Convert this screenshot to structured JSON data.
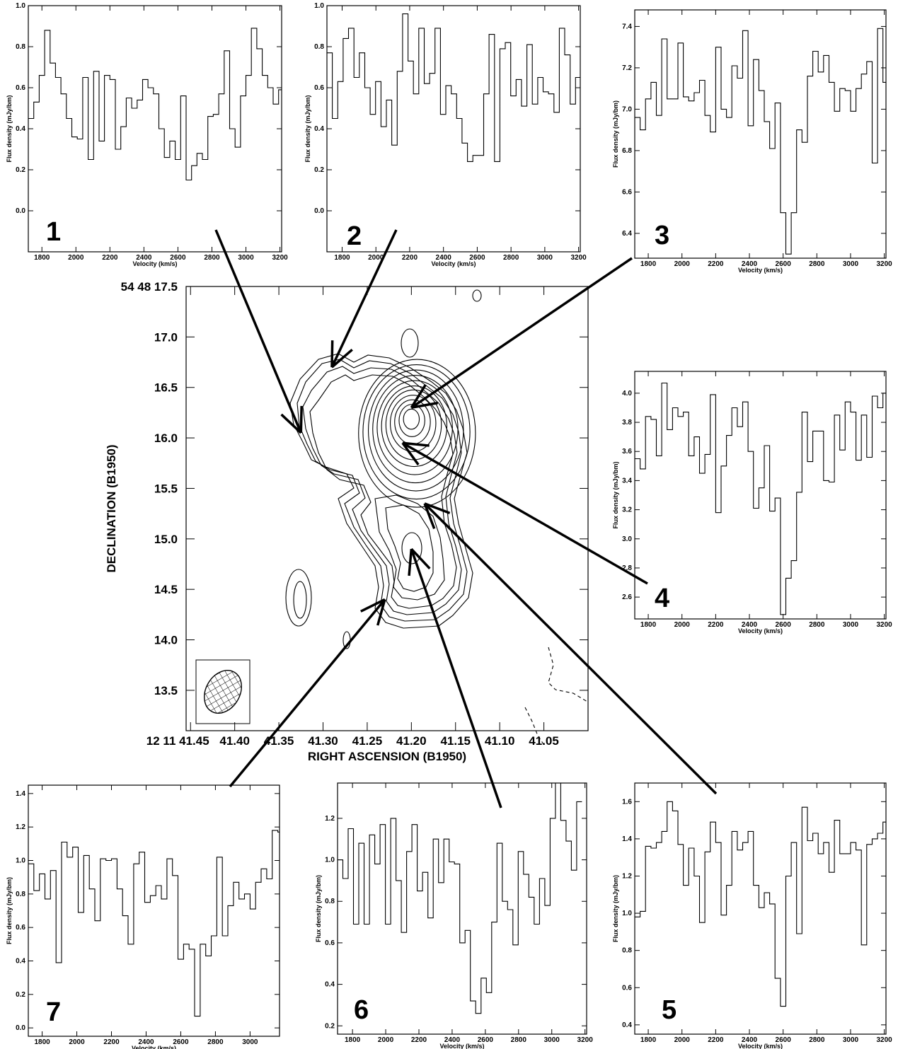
{
  "chart_data": [
    {
      "type": "contour",
      "panel": "map",
      "xlabel": "RIGHT ASCENSION (B1950)",
      "ylabel": "DECLINATION (B1950)",
      "x_tick_labels": [
        "12 11 41.45",
        "41.40",
        "41.35",
        "41.30",
        "41.25",
        "41.20",
        "41.15",
        "41.10",
        "41.05"
      ],
      "y_tick_labels": [
        "54 48 17.5",
        "17.0",
        "16.5",
        "16.0",
        "15.5",
        "15.0",
        "14.5",
        "14.0",
        "13.5"
      ],
      "xlim_seconds": [
        41.455,
        41.0
      ],
      "ylim_arcsec": [
        13.1,
        17.5
      ],
      "peak": {
        "ra_s": 41.2,
        "dec_arcsec": 16.2
      },
      "beam": {
        "ra_s": 41.43,
        "dec_arcsec": 13.6,
        "major_arcsec": 0.5,
        "minor_arcsec": 0.38,
        "hatched": true
      },
      "arrows": [
        {
          "panel": "1",
          "ra_s": 41.325,
          "dec_arcsec": 16.05
        },
        {
          "panel": "2",
          "ra_s": 41.29,
          "dec_arcsec": 16.7
        },
        {
          "panel": "3",
          "ra_s": 41.2,
          "dec_arcsec": 16.3
        },
        {
          "panel": "4",
          "ra_s": 41.21,
          "dec_arcsec": 15.95
        },
        {
          "panel": "5",
          "ra_s": 41.185,
          "dec_arcsec": 15.35
        },
        {
          "panel": "6",
          "ra_s": 41.2,
          "dec_arcsec": 14.9
        },
        {
          "panel": "7",
          "ra_s": 41.23,
          "dec_arcsec": 14.4
        }
      ]
    },
    {
      "type": "line",
      "step": true,
      "panel": "1",
      "xlabel": "Velocity (km/s)",
      "ylabel": "Flux density (mJy/bm)",
      "xlim": [
        1720,
        3210
      ],
      "ylim": [
        -0.2,
        1.0
      ],
      "xticks": [
        1800,
        2000,
        2200,
        2400,
        2600,
        2800,
        3000,
        3200
      ],
      "yticks": [
        0.0,
        0.2,
        0.4,
        0.6,
        0.8,
        1.0
      ],
      "x_start": 1720,
      "x_step": 32,
      "values": [
        0.45,
        0.53,
        0.66,
        0.88,
        0.72,
        0.65,
        0.57,
        0.45,
        0.36,
        0.35,
        0.65,
        0.25,
        0.68,
        0.34,
        0.66,
        0.64,
        0.3,
        0.41,
        0.55,
        0.5,
        0.54,
        0.64,
        0.6,
        0.57,
        0.4,
        0.26,
        0.34,
        0.25,
        0.56,
        0.15,
        0.22,
        0.28,
        0.25,
        0.46,
        0.47,
        0.57,
        0.78,
        0.4,
        0.31,
        0.56,
        0.66,
        0.89,
        0.79,
        0.66,
        0.6,
        0.52,
        0.59,
        0.77,
        0.94,
        0.38,
        0.34,
        0.62
      ]
    },
    {
      "type": "line",
      "step": true,
      "panel": "2",
      "xlabel": "Velocity (km/s)",
      "ylabel": "Flux density (mJy/bm)",
      "xlim": [
        1710,
        3210
      ],
      "ylim": [
        -0.2,
        1.0
      ],
      "xticks": [
        1800,
        2000,
        2200,
        2400,
        2600,
        2800,
        3000,
        3200
      ],
      "yticks": [
        0.0,
        0.2,
        0.4,
        0.6,
        0.8,
        1.0
      ],
      "x_start": 1710,
      "x_step": 32,
      "values": [
        0.77,
        0.45,
        0.63,
        0.84,
        0.89,
        0.65,
        0.77,
        0.6,
        0.47,
        0.63,
        0.41,
        0.54,
        0.32,
        0.68,
        0.96,
        0.73,
        0.57,
        0.89,
        0.62,
        0.67,
        0.89,
        0.47,
        0.61,
        0.57,
        0.45,
        0.33,
        0.24,
        0.27,
        0.27,
        0.57,
        0.86,
        0.24,
        0.79,
        0.82,
        0.56,
        0.64,
        0.51,
        0.81,
        0.52,
        0.65,
        0.58,
        0.57,
        0.48,
        0.89,
        0.76,
        0.52,
        0.65,
        0.59,
        0.69,
        0.6,
        0.58,
        0.74,
        0.54,
        0.41,
        0.44,
        0.58
      ]
    },
    {
      "type": "line",
      "step": true,
      "panel": "3",
      "xlabel": "Velocity (km/s)",
      "ylabel": "Flux density (mJy/bm)",
      "xlim": [
        1720,
        3210
      ],
      "ylim": [
        6.28,
        7.48
      ],
      "xticks": [
        1800,
        2000,
        2200,
        2400,
        2600,
        2800,
        3000,
        3200
      ],
      "yticks": [
        6.4,
        6.6,
        6.8,
        7.0,
        7.2,
        7.4
      ],
      "x_start": 1720,
      "x_step": 32,
      "values": [
        6.96,
        6.9,
        7.05,
        7.13,
        6.97,
        7.34,
        7.05,
        7.05,
        7.32,
        7.06,
        7.04,
        7.08,
        7.14,
        6.97,
        6.89,
        7.3,
        7.0,
        6.96,
        7.21,
        7.15,
        7.38,
        6.92,
        7.24,
        7.09,
        6.94,
        6.81,
        7.03,
        6.5,
        6.3,
        6.5,
        6.9,
        6.84,
        7.16,
        7.28,
        7.18,
        7.26,
        7.13,
        6.99,
        7.1,
        7.09,
        6.99,
        7.1,
        7.17,
        7.23,
        6.74,
        7.39,
        7.13,
        7.33,
        7.0,
        6.97,
        7.41,
        7.2,
        7.46,
        7.13
      ]
    },
    {
      "type": "line",
      "step": true,
      "panel": "4",
      "xlabel": "Velocity (km/s)",
      "ylabel": "Flux density (mJy/bm)",
      "xlim": [
        1720,
        3210
      ],
      "ylim": [
        2.45,
        4.15
      ],
      "xticks": [
        1800,
        2000,
        2200,
        2400,
        2600,
        2800,
        3000,
        3200
      ],
      "yticks": [
        2.6,
        2.8,
        3.0,
        3.2,
        3.4,
        3.6,
        3.8,
        4.0
      ],
      "x_start": 1720,
      "x_step": 32,
      "values": [
        3.55,
        3.48,
        3.84,
        3.82,
        3.57,
        4.07,
        3.75,
        3.9,
        3.84,
        3.87,
        3.57,
        3.7,
        3.45,
        3.58,
        3.99,
        3.18,
        3.5,
        3.71,
        3.9,
        3.77,
        3.94,
        3.6,
        3.21,
        3.35,
        3.64,
        3.19,
        3.28,
        2.48,
        2.73,
        2.85,
        3.32,
        3.87,
        3.53,
        3.74,
        3.74,
        3.4,
        3.39,
        3.85,
        3.61,
        3.94,
        3.87,
        3.54,
        3.85,
        3.56,
        3.98,
        3.9,
        4.0,
        3.71,
        3.75,
        3.74,
        4.15,
        3.65,
        3.9
      ]
    },
    {
      "type": "line",
      "step": true,
      "panel": "5",
      "xlabel": "Velocity (km/s)",
      "ylabel": "Flux density (mJy/bm)",
      "xlim": [
        1720,
        3210
      ],
      "ylim": [
        0.35,
        1.7
      ],
      "xticks": [
        1800,
        2000,
        2200,
        2400,
        2600,
        2800,
        3000,
        3200
      ],
      "yticks": [
        0.4,
        0.6,
        0.8,
        1.0,
        1.2,
        1.4,
        1.6
      ],
      "x_start": 1720,
      "x_step": 32,
      "values": [
        0.98,
        1.01,
        1.36,
        1.35,
        1.38,
        1.44,
        1.6,
        1.55,
        1.37,
        1.15,
        1.35,
        1.2,
        0.95,
        1.33,
        1.49,
        1.38,
        0.99,
        1.15,
        1.44,
        1.34,
        1.38,
        1.44,
        1.15,
        1.03,
        1.11,
        1.05,
        0.65,
        0.5,
        1.2,
        1.38,
        0.89,
        1.57,
        1.39,
        1.43,
        1.32,
        1.38,
        1.22,
        1.5,
        1.32,
        1.32,
        1.38,
        1.34,
        0.83,
        1.37,
        1.4,
        1.43,
        1.49,
        1.34,
        1.53,
        1.42,
        1.47,
        1.15
      ]
    },
    {
      "type": "line",
      "step": true,
      "panel": "6",
      "xlabel": "Velocity (km/s)",
      "ylabel": "Flux density (mJy/bm)",
      "xlim": [
        1710,
        3210
      ],
      "ylim": [
        0.16,
        1.37
      ],
      "xticks": [
        1800,
        2000,
        2200,
        2400,
        2600,
        2800,
        3000,
        3200
      ],
      "yticks": [
        0.2,
        0.4,
        0.6,
        0.8,
        1.0,
        1.2
      ],
      "x_start": 1710,
      "x_step": 32,
      "values": [
        1.0,
        0.91,
        1.15,
        0.69,
        1.08,
        0.69,
        1.12,
        0.98,
        1.17,
        0.69,
        1.2,
        0.9,
        0.65,
        1.04,
        1.17,
        0.85,
        0.94,
        0.72,
        1.1,
        0.89,
        1.1,
        0.99,
        0.98,
        0.6,
        0.66,
        0.32,
        0.26,
        0.43,
        0.36,
        0.7,
        1.08,
        0.8,
        0.76,
        0.59,
        1.04,
        0.93,
        0.82,
        0.69,
        0.91,
        0.78,
        1.2,
        1.37,
        1.19,
        1.09,
        0.95,
        1.28
      ]
    },
    {
      "type": "line",
      "step": true,
      "panel": "7",
      "xlabel": "Velocity (km/s)",
      "ylabel": "Flux density (mJy/bm)",
      "xlim": [
        1720,
        3170
      ],
      "ylim": [
        -0.05,
        1.45
      ],
      "xticks": [
        1800,
        2000,
        2200,
        2400,
        2600,
        2800,
        3000
      ],
      "yticks": [
        0.0,
        0.2,
        0.4,
        0.6,
        0.8,
        1.0,
        1.2,
        1.4
      ],
      "x_start": 1720,
      "x_step": 32,
      "values": [
        0.98,
        0.82,
        0.92,
        0.77,
        0.94,
        0.39,
        1.11,
        1.02,
        1.08,
        0.69,
        1.03,
        0.83,
        0.64,
        1.01,
        1.0,
        1.01,
        0.83,
        0.67,
        0.5,
        0.98,
        1.05,
        0.75,
        0.79,
        0.85,
        0.77,
        1.01,
        0.91,
        0.41,
        0.5,
        0.47,
        0.07,
        0.5,
        0.43,
        0.55,
        1.02,
        0.55,
        0.73,
        0.87,
        0.77,
        0.8,
        0.71,
        0.87,
        0.95,
        0.89,
        1.18,
        1.17,
        0.83,
        0.8,
        0.85,
        0.95,
        1.09,
        0.81
      ]
    }
  ]
}
